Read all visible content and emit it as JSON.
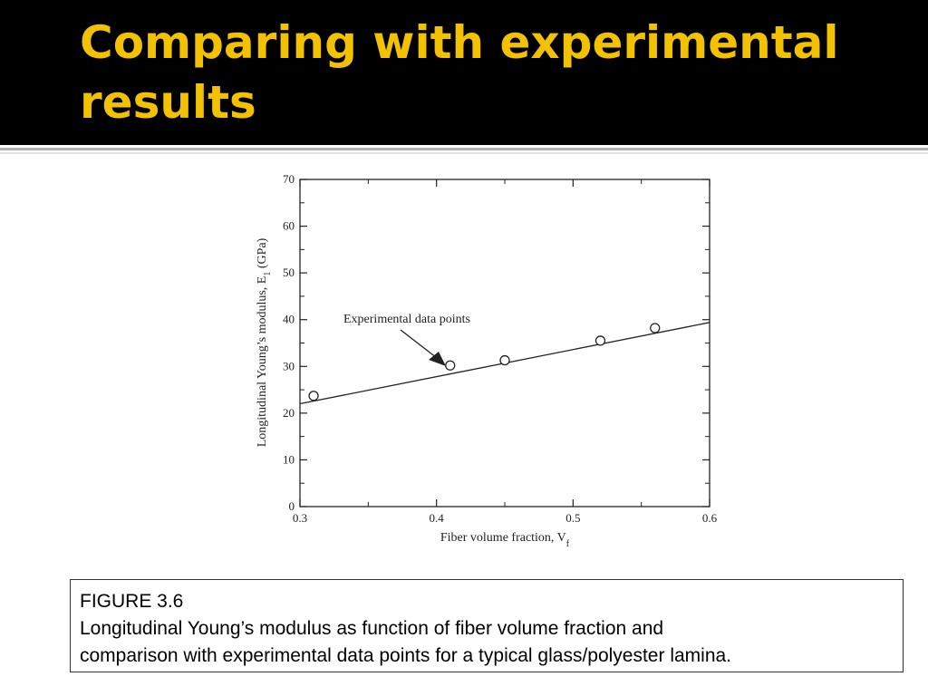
{
  "slide": {
    "title": "Comparing with experimental results"
  },
  "caption": {
    "figure_number": "FIGURE 3.6",
    "line1": "Longitudinal Young’s modulus as function of fiber volume fraction and",
    "line2": "comparison with experimental data points for a typical glass/polyester lamina."
  },
  "colors": {
    "title_bar": "#000000",
    "title_text": "#f2c200"
  },
  "chart_data": {
    "type": "scatter",
    "xlabel": "Fiber volume fraction, V",
    "xlabel_subscript": "f",
    "ylabel": "Longitudinal Young’s modulus, E",
    "ylabel_subscript": "1",
    "ylabel_unit": " (GPa)",
    "xlim": [
      0.3,
      0.6
    ],
    "ylim": [
      0,
      70
    ],
    "x_ticks": [
      0.3,
      0.4,
      0.5,
      0.6
    ],
    "x_tick_labels": [
      "0.3",
      "0.4",
      "0.5",
      "0.6"
    ],
    "y_ticks": [
      0,
      10,
      20,
      30,
      40,
      50,
      60,
      70
    ],
    "y_tick_labels": [
      "0",
      "10",
      "20",
      "30",
      "40",
      "50",
      "60",
      "70"
    ],
    "grid": false,
    "series": [
      {
        "kind": "points",
        "x": [
          0.31,
          0.41,
          0.45,
          0.52,
          0.56
        ],
        "y": [
          23.7,
          30.2,
          31.3,
          35.5,
          38.2
        ]
      },
      {
        "kind": "line",
        "x": [
          0.3,
          0.6
        ],
        "y": [
          22.0,
          39.4
        ]
      }
    ],
    "annotation": {
      "text": "Experimental data points",
      "target_point_index": 1
    }
  }
}
